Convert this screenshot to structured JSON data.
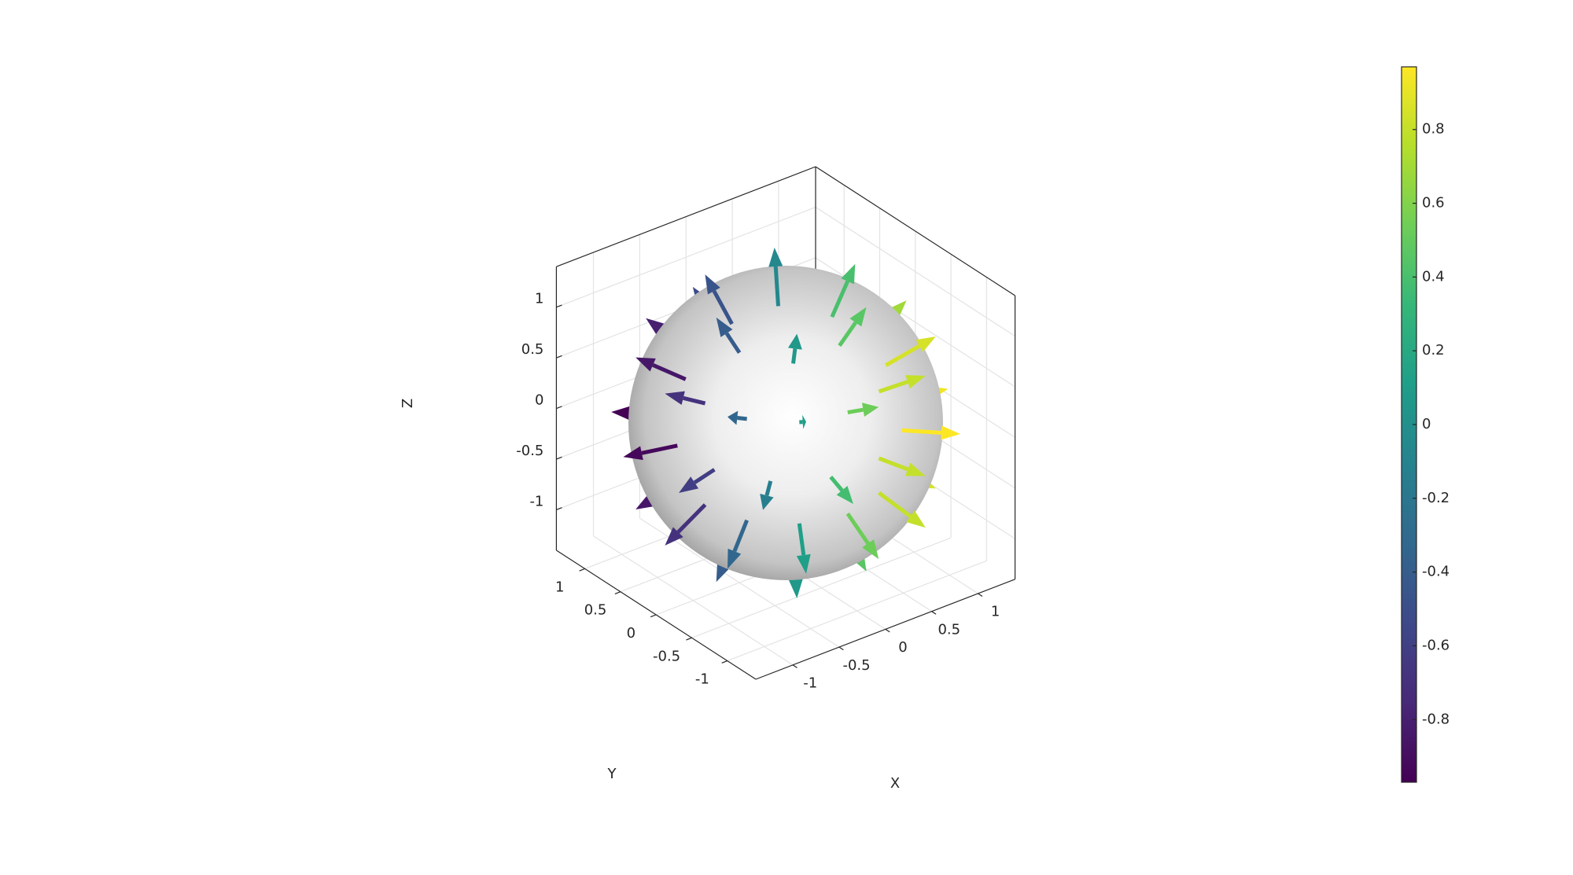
{
  "chart_data": {
    "type": "quiver3d",
    "colormap": "viridis",
    "grid": true,
    "xlabel": "X",
    "ylabel": "Y",
    "zlabel": "Z",
    "xlim": [
      -1.4,
      1.4
    ],
    "ylim": [
      -1.4,
      1.4
    ],
    "zlim": [
      -1.4,
      1.4
    ],
    "xticks": [
      -1,
      -0.5,
      0,
      0.5,
      1
    ],
    "yticks": [
      -1,
      -0.5,
      0,
      0.5,
      1
    ],
    "zticks": [
      -1,
      -0.5,
      0,
      0.5,
      1
    ],
    "clim": [
      -0.97,
      0.97
    ],
    "cticks": [
      -0.8,
      -0.6,
      -0.4,
      -0.2,
      0,
      0.2,
      0.4,
      0.6,
      0.8
    ],
    "x": [
      0.5,
      0.25,
      -0.25,
      -0.5,
      -0.25,
      0.25,
      0.87,
      0.75,
      0.43,
      0,
      -0.43,
      -0.75,
      -0.87,
      -0.75,
      -0.43,
      0,
      0.43,
      0.75,
      0.97,
      0.71,
      0.26,
      -0.26,
      -0.71,
      -0.97,
      -0.97,
      -0.71,
      -0.26,
      0.26,
      0.71,
      0.97,
      0.87,
      0.75,
      0.43,
      0,
      -0.43,
      -0.75,
      -0.87,
      -0.75,
      -0.43,
      0,
      0.43,
      0.75,
      0.5,
      0.25,
      -0.25,
      -0.5,
      -0.25,
      0.25
    ],
    "y": [
      0,
      0.43,
      0.43,
      0,
      -0.43,
      -0.43,
      0,
      0.43,
      0.75,
      0.87,
      0.75,
      0.43,
      0,
      -0.43,
      -0.75,
      -0.87,
      -0.75,
      -0.43,
      0.26,
      0.71,
      0.97,
      0.97,
      0.71,
      0.26,
      -0.26,
      -0.71,
      -0.97,
      -0.97,
      -0.71,
      -0.26,
      0,
      0.43,
      0.75,
      0.87,
      0.75,
      0.43,
      0,
      -0.43,
      -0.75,
      -0.87,
      -0.75,
      -0.43,
      0,
      0.43,
      0.43,
      0,
      -0.43,
      -0.43
    ],
    "z": [
      0.87,
      0.87,
      0.87,
      0.87,
      0.87,
      0.87,
      0.5,
      0.5,
      0.5,
      0.5,
      0.5,
      0.5,
      0.5,
      0.5,
      0.5,
      0.5,
      0.5,
      0.5,
      0,
      0,
      0,
      0,
      0,
      0,
      0,
      0,
      0,
      0,
      0,
      0,
      -0.5,
      -0.5,
      -0.5,
      -0.5,
      -0.5,
      -0.5,
      -0.5,
      -0.5,
      -0.5,
      -0.5,
      -0.5,
      -0.5,
      -0.87,
      -0.87,
      -0.87,
      -0.87,
      -0.87,
      -0.87
    ],
    "c": [
      0.4,
      -0.06,
      -0.46,
      -0.4,
      0.06,
      0.46,
      0.69,
      0.33,
      -0.12,
      -0.53,
      -0.8,
      -0.85,
      -0.69,
      -0.33,
      0.12,
      0.53,
      0.8,
      0.85,
      0.61,
      0.13,
      -0.38,
      -0.8,
      -0.97,
      -0.93,
      -0.61,
      -0.13,
      0.38,
      0.8,
      0.97,
      0.93,
      0.69,
      0.33,
      -0.12,
      -0.53,
      -0.8,
      -0.85,
      -0.69,
      -0.33,
      0.12,
      0.53,
      0.8,
      0.85,
      0.4,
      -0.06,
      -0.46,
      -0.4,
      0.06,
      0.46
    ]
  }
}
